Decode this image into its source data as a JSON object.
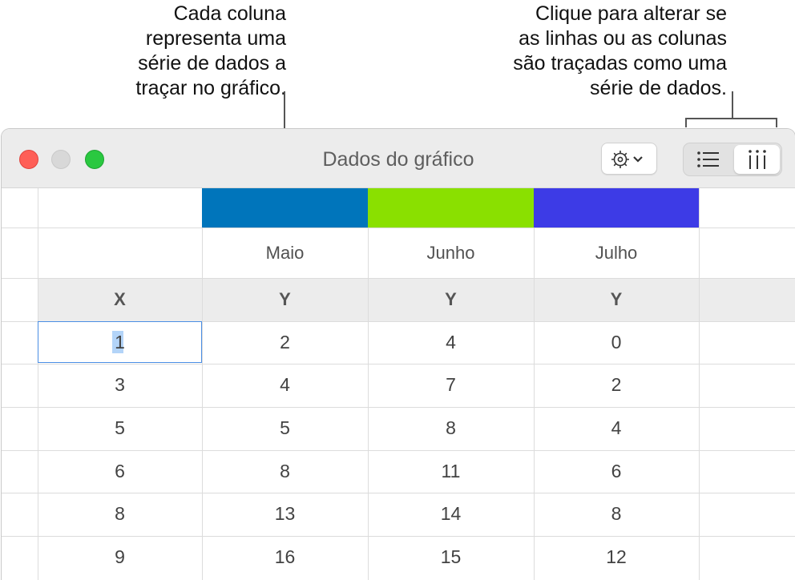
{
  "callouts": {
    "left": [
      "Cada coluna",
      "representa uma",
      "série de dados a",
      "traçar no gráfico."
    ],
    "right": [
      "Clique para alterar se",
      "as linhas ou as colunas",
      "são traçadas como uma",
      "série de dados."
    ]
  },
  "window": {
    "title": "Dados do gráfico"
  },
  "toolbar": {
    "gear_icon": "gear-chevron-icon",
    "rows_icon": "list-rows-icon",
    "columns_icon": "columns-icon",
    "selected_segment": "columns"
  },
  "table": {
    "series": [
      {
        "name": "Maio",
        "color": "#0075bb",
        "axis": "Y"
      },
      {
        "name": "Junho",
        "color": "#8ae000",
        "axis": "Y"
      },
      {
        "name": "Julho",
        "color": "#3d3be6",
        "axis": "Y"
      }
    ],
    "x_header": "X",
    "rows": [
      [
        "1",
        "2",
        "4",
        "0"
      ],
      [
        "3",
        "4",
        "7",
        "2"
      ],
      [
        "5",
        "5",
        "8",
        "4"
      ],
      [
        "6",
        "8",
        "11",
        "6"
      ],
      [
        "8",
        "13",
        "14",
        "8"
      ],
      [
        "9",
        "16",
        "15",
        "12"
      ]
    ]
  }
}
